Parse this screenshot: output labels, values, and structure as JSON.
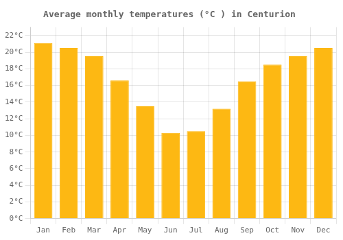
{
  "chart_data": {
    "type": "bar",
    "title": "Average monthly temperatures (°C ) in Centurion",
    "categories": [
      "Jan",
      "Feb",
      "Mar",
      "Apr",
      "May",
      "Jun",
      "Jul",
      "Aug",
      "Sep",
      "Oct",
      "Nov",
      "Dec"
    ],
    "values": [
      21.1,
      20.5,
      19.5,
      16.6,
      13.5,
      10.3,
      10.5,
      13.2,
      16.5,
      18.5,
      19.5,
      20.5
    ],
    "color": "#FDB813",
    "ylim": [
      0,
      23
    ],
    "yticks": [
      {
        "value": 0,
        "label": "0°C"
      },
      {
        "value": 2,
        "label": "2°C"
      },
      {
        "value": 4,
        "label": "4°C"
      },
      {
        "value": 6,
        "label": "6°C"
      },
      {
        "value": 8,
        "label": "8°C"
      },
      {
        "value": 10,
        "label": "10°C"
      },
      {
        "value": 12,
        "label": "12°C"
      },
      {
        "value": 14,
        "label": "14°C"
      },
      {
        "value": 16,
        "label": "16°C"
      },
      {
        "value": 18,
        "label": "18°C"
      },
      {
        "value": 20,
        "label": "20°C"
      },
      {
        "value": 22,
        "label": "22°C"
      }
    ],
    "grid": true
  }
}
